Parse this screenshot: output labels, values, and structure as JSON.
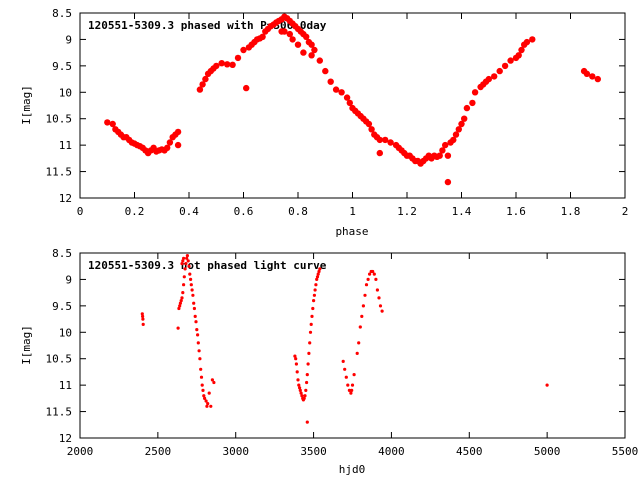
{
  "chart_data": [
    {
      "type": "scatter",
      "title": "120551-5309.3 phased with P=306.0day",
      "xlabel": "phase",
      "ylabel": "I[mag]",
      "xlim": [
        0,
        2
      ],
      "ylim": [
        12,
        8.5
      ],
      "y_inverted": true,
      "xticks": [
        "0",
        "0.2",
        "0.4",
        "0.6",
        "0.8",
        "1",
        "1.2",
        "1.4",
        "1.6",
        "1.8",
        "2"
      ],
      "yticks": [
        "8.5",
        "9",
        "9.5",
        "10",
        "10.5",
        "11",
        "11.5",
        "12"
      ],
      "grid": false,
      "marker_color": "#ff0000",
      "x": [
        0.1,
        0.12,
        0.13,
        0.14,
        0.15,
        0.16,
        0.17,
        0.18,
        0.19,
        0.2,
        0.21,
        0.22,
        0.23,
        0.24,
        0.25,
        0.26,
        0.27,
        0.28,
        0.29,
        0.3,
        0.31,
        0.32,
        0.33,
        0.34,
        0.35,
        0.36,
        0.36,
        0.44,
        0.45,
        0.46,
        0.47,
        0.48,
        0.49,
        0.5,
        0.52,
        0.54,
        0.56,
        0.58,
        0.6,
        0.61,
        0.62,
        0.63,
        0.64,
        0.65,
        0.66,
        0.67,
        0.68,
        0.69,
        0.7,
        0.71,
        0.72,
        0.73,
        0.74,
        0.75,
        0.76,
        0.77,
        0.78,
        0.79,
        0.8,
        0.81,
        0.82,
        0.83,
        0.84,
        0.85,
        0.86,
        0.74,
        0.75,
        0.77,
        0.78,
        0.8,
        0.82,
        0.85,
        0.88,
        0.9,
        0.92,
        0.94,
        0.96,
        0.98,
        0.99,
        1.0,
        1.01,
        1.02,
        1.03,
        1.04,
        1.05,
        1.06,
        1.07,
        1.08,
        1.09,
        1.1,
        1.1,
        1.12,
        1.14,
        1.16,
        1.17,
        1.18,
        1.19,
        1.2,
        1.21,
        1.22,
        1.23,
        1.24,
        1.25,
        1.26,
        1.27,
        1.28,
        1.29,
        1.3,
        1.31,
        1.32,
        1.33,
        1.34,
        1.35,
        1.35,
        1.36,
        1.37,
        1.38,
        1.39,
        1.4,
        1.41,
        1.42,
        1.44,
        1.45,
        1.47,
        1.48,
        1.49,
        1.5,
        1.52,
        1.54,
        1.56,
        1.58,
        1.6,
        1.61,
        1.62,
        1.63,
        1.64,
        1.66,
        1.85,
        1.86,
        1.88,
        1.9
      ],
      "y": [
        10.57,
        10.6,
        10.7,
        10.75,
        10.8,
        10.85,
        10.85,
        10.9,
        10.95,
        10.97,
        11.0,
        11.02,
        11.05,
        11.1,
        11.15,
        11.1,
        11.05,
        11.12,
        11.1,
        11.08,
        11.1,
        11.05,
        10.95,
        10.85,
        10.8,
        10.75,
        11.0,
        9.95,
        9.85,
        9.75,
        9.65,
        9.6,
        9.55,
        9.5,
        9.45,
        9.47,
        9.48,
        9.35,
        9.2,
        9.92,
        9.15,
        9.1,
        9.05,
        9.0,
        8.98,
        8.95,
        8.85,
        8.8,
        8.75,
        8.72,
        8.68,
        8.65,
        8.62,
        8.57,
        8.6,
        8.65,
        8.7,
        8.75,
        8.8,
        8.85,
        8.9,
        8.95,
        9.05,
        9.1,
        9.2,
        8.85,
        8.85,
        8.9,
        9.0,
        9.1,
        9.25,
        9.3,
        9.4,
        9.6,
        9.8,
        9.95,
        10.0,
        10.1,
        10.2,
        10.3,
        10.35,
        10.4,
        10.45,
        10.5,
        10.55,
        10.6,
        10.7,
        10.8,
        10.85,
        10.9,
        11.15,
        10.9,
        10.95,
        11.0,
        11.05,
        11.1,
        11.15,
        11.2,
        11.2,
        11.25,
        11.3,
        11.3,
        11.35,
        11.3,
        11.25,
        11.2,
        11.25,
        11.2,
        11.22,
        11.2,
        11.1,
        11.0,
        11.2,
        11.7,
        10.95,
        10.9,
        10.8,
        10.7,
        10.6,
        10.5,
        10.3,
        10.2,
        10.0,
        9.9,
        9.85,
        9.8,
        9.75,
        9.7,
        9.6,
        9.5,
        9.4,
        9.35,
        9.3,
        9.2,
        9.1,
        9.05,
        9.0,
        9.6,
        9.65,
        9.7,
        9.75
      ]
    },
    {
      "type": "scatter",
      "title": "120551-5309.3 not phased light curve",
      "xlabel": "hjd0",
      "ylabel": "I[mag]",
      "xlim": [
        2000,
        5500
      ],
      "ylim": [
        12,
        8.5
      ],
      "y_inverted": true,
      "xticks": [
        "2000",
        "2500",
        "3000",
        "3500",
        "4000",
        "4500",
        "5000",
        "5500"
      ],
      "yticks": [
        "8.5",
        "9",
        "9.5",
        "10",
        "10.5",
        "11",
        "11.5",
        "12"
      ],
      "grid": false,
      "marker_color": "#ff0000",
      "x": [
        2400,
        2402,
        2404,
        2406,
        2630,
        2635,
        2640,
        2645,
        2650,
        2655,
        2660,
        2665,
        2670,
        2675,
        2680,
        2685,
        2690,
        2695,
        2700,
        2705,
        2710,
        2715,
        2720,
        2725,
        2730,
        2735,
        2740,
        2745,
        2750,
        2755,
        2760,
        2765,
        2770,
        2775,
        2780,
        2785,
        2790,
        2795,
        2800,
        2810,
        2815,
        2820,
        2830,
        2840,
        2850,
        2860,
        2665,
        2660,
        2655,
        3380,
        3385,
        3390,
        3395,
        3400,
        3405,
        3410,
        3415,
        3420,
        3425,
        3430,
        3435,
        3440,
        3445,
        3450,
        3455,
        3460,
        3465,
        3470,
        3475,
        3480,
        3485,
        3490,
        3495,
        3500,
        3505,
        3510,
        3515,
        3520,
        3525,
        3530,
        3535,
        3540,
        3460,
        3690,
        3700,
        3710,
        3720,
        3730,
        3740,
        3745,
        3750,
        3760,
        3780,
        3790,
        3800,
        3810,
        3820,
        3830,
        3840,
        3850,
        3860,
        3870,
        3880,
        3890,
        3900,
        3910,
        3920,
        3930,
        3940,
        5000
      ],
      "y": [
        9.65,
        9.7,
        9.75,
        9.85,
        9.92,
        9.55,
        9.5,
        9.45,
        9.4,
        9.35,
        9.25,
        9.1,
        8.95,
        8.8,
        8.7,
        8.6,
        8.55,
        8.65,
        8.75,
        8.9,
        9.0,
        9.1,
        9.2,
        9.3,
        9.45,
        9.55,
        9.7,
        9.8,
        9.95,
        10.05,
        10.2,
        10.35,
        10.5,
        10.7,
        10.85,
        11.0,
        11.1,
        11.2,
        11.25,
        11.3,
        11.4,
        11.35,
        11.15,
        11.4,
        10.9,
        10.95,
        8.6,
        8.65,
        8.7,
        10.45,
        10.5,
        10.6,
        10.75,
        10.9,
        11.0,
        11.05,
        11.1,
        11.15,
        11.2,
        11.25,
        11.28,
        11.25,
        11.2,
        11.1,
        10.95,
        10.8,
        10.6,
        10.4,
        10.2,
        10.0,
        9.85,
        9.7,
        9.55,
        9.4,
        9.3,
        9.2,
        9.1,
        9.0,
        8.95,
        8.9,
        8.85,
        8.8,
        11.7,
        10.55,
        10.7,
        10.85,
        11.0,
        11.1,
        11.15,
        11.1,
        11.0,
        10.8,
        10.4,
        10.2,
        9.9,
        9.7,
        9.5,
        9.3,
        9.1,
        9.0,
        8.9,
        8.85,
        8.85,
        8.9,
        9.0,
        9.2,
        9.35,
        9.5,
        9.6,
        11.0
      ]
    }
  ]
}
